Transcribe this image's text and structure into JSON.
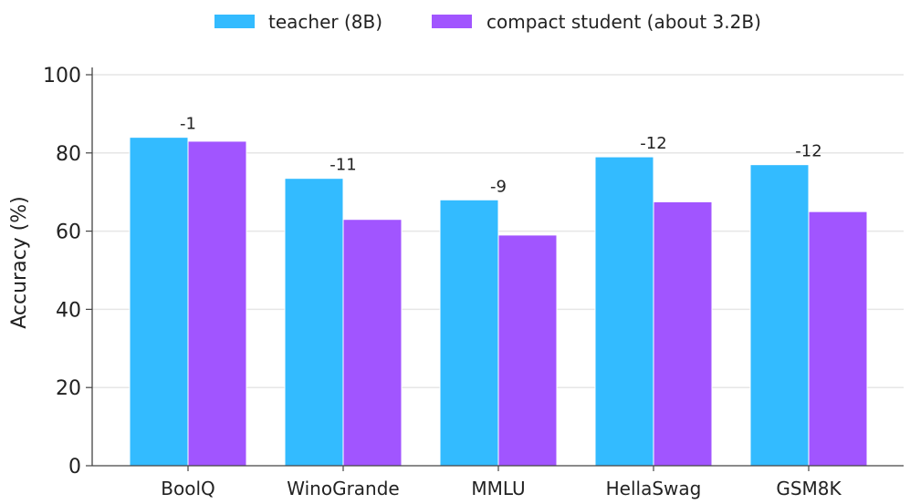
{
  "chart_data": {
    "type": "bar",
    "categories": [
      "BoolQ",
      "WinoGrande",
      "MMLU",
      "HellaSwag",
      "GSM8K"
    ],
    "series": [
      {
        "name": "teacher (8B)",
        "color": "#33bbff",
        "values": [
          84,
          73.5,
          68,
          79,
          77
        ]
      },
      {
        "name": "compact student (about 3.2B)",
        "color": "#a155ff",
        "values": [
          83,
          63,
          59,
          67.5,
          65
        ]
      }
    ],
    "annotations": [
      "-1",
      "-11",
      "-9",
      "-12",
      "-12"
    ],
    "ylabel": "Accuracy (%)",
    "xlabel": "",
    "ylim": [
      0,
      100
    ],
    "yticks": [
      0,
      20,
      40,
      60,
      80,
      100
    ],
    "grid": "horizontal",
    "legend_position": "top-center"
  }
}
